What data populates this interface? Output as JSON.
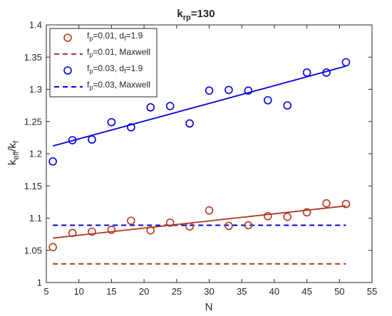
{
  "chart_data": {
    "type": "scatter",
    "title_main": "k",
    "title_sub": "rp",
    "title_rest": "=130",
    "xlabel": "N",
    "ylabel_main": "k",
    "ylabel_sub1": "eff",
    "ylabel_mid": "/k",
    "ylabel_sub2": "f",
    "xlim": [
      5,
      55
    ],
    "ylim": [
      1,
      1.4
    ],
    "xticks": [
      "5",
      "10",
      "15",
      "20",
      "25",
      "30",
      "35",
      "40",
      "45",
      "50",
      "55"
    ],
    "yticks": [
      "1",
      "1.05",
      "1.1",
      "1.15",
      "1.2",
      "1.25",
      "1.3",
      "1.35",
      "1.4"
    ],
    "grid": false,
    "legend_position": "top-left",
    "series": [
      {
        "kind": "scatter",
        "color": "#b03a22",
        "legend_parts": [
          "f",
          "p",
          "=0.01, d",
          "f",
          "=1.9"
        ],
        "x": [
          6,
          9,
          12,
          15,
          18,
          21,
          24,
          27,
          30,
          33,
          36,
          39,
          42,
          45,
          48,
          51
        ],
        "y": [
          1.055,
          1.077,
          1.079,
          1.082,
          1.096,
          1.081,
          1.093,
          1.087,
          1.112,
          1.088,
          1.089,
          1.103,
          1.102,
          1.109,
          1.123,
          1.122
        ]
      },
      {
        "kind": "constant",
        "color": "#b03a22",
        "legend_parts": [
          "f",
          "p",
          "=0.01, Maxwell"
        ],
        "x": [
          6,
          51
        ],
        "y": [
          1.029,
          1.029
        ]
      },
      {
        "kind": "scatter",
        "color": "#0000e0",
        "legend_parts": [
          "f",
          "p",
          "=0.03, d",
          "f",
          "=1.9"
        ],
        "x": [
          6,
          9,
          12,
          15,
          18,
          21,
          24,
          27,
          30,
          33,
          36,
          39,
          42,
          45,
          48,
          51
        ],
        "y": [
          1.188,
          1.221,
          1.222,
          1.249,
          1.241,
          1.272,
          1.274,
          1.247,
          1.298,
          1.299,
          1.298,
          1.283,
          1.275,
          1.326,
          1.326,
          1.342
        ]
      },
      {
        "kind": "constant",
        "color": "#0000e0",
        "legend_parts": [
          "f",
          "p",
          "=0.03, Maxwell"
        ],
        "x": [
          6,
          51
        ],
        "y": [
          1.089,
          1.089
        ]
      }
    ],
    "fits": [
      {
        "color": "#b03a22",
        "x": [
          6,
          51
        ],
        "y": [
          1.069,
          1.119
        ]
      },
      {
        "color": "#0000e0",
        "x": [
          6,
          51
        ],
        "y": [
          1.212,
          1.336
        ]
      }
    ]
  }
}
